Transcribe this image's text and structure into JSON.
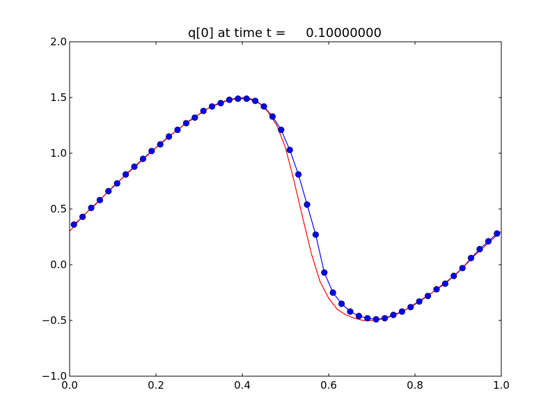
{
  "chart_data": {
    "type": "line",
    "title": "q[0] at time t =     0.10000000",
    "xlabel": "",
    "ylabel": "",
    "xlim": [
      0.0,
      1.0
    ],
    "ylim": [
      -1.0,
      2.0
    ],
    "grid": false,
    "x_ticks": [
      {
        "value": 0.0,
        "label": "0.0"
      },
      {
        "value": 0.2,
        "label": "0.2"
      },
      {
        "value": 0.4,
        "label": "0.4"
      },
      {
        "value": 0.6,
        "label": "0.6"
      },
      {
        "value": 0.8,
        "label": "0.8"
      },
      {
        "value": 1.0,
        "label": "1.0"
      }
    ],
    "y_ticks": [
      {
        "value": -1.0,
        "label": "−1.0"
      },
      {
        "value": -0.5,
        "label": "−0.5"
      },
      {
        "value": 0.0,
        "label": "0.0"
      },
      {
        "value": 0.5,
        "label": "0.5"
      },
      {
        "value": 1.0,
        "label": "1.0"
      },
      {
        "value": 1.5,
        "label": "1.5"
      },
      {
        "value": 2.0,
        "label": "2.0"
      }
    ],
    "series": [
      {
        "style": "line-with-markers",
        "color": "#0000ff",
        "marker_color": "#0000ff",
        "x": [
          0.01,
          0.03,
          0.05,
          0.07,
          0.09,
          0.11,
          0.13,
          0.15,
          0.17,
          0.19,
          0.21,
          0.23,
          0.25,
          0.27,
          0.29,
          0.31,
          0.33,
          0.35,
          0.37,
          0.39,
          0.41,
          0.43,
          0.45,
          0.47,
          0.49,
          0.51,
          0.53,
          0.55,
          0.57,
          0.59,
          0.61,
          0.63,
          0.65,
          0.67,
          0.69,
          0.71,
          0.73,
          0.75,
          0.77,
          0.79,
          0.81,
          0.83,
          0.85,
          0.87,
          0.89,
          0.91,
          0.93,
          0.95,
          0.97,
          0.99
        ],
        "y": [
          0.36,
          0.43,
          0.51,
          0.58,
          0.66,
          0.73,
          0.81,
          0.88,
          0.95,
          1.02,
          1.08,
          1.15,
          1.21,
          1.27,
          1.32,
          1.38,
          1.42,
          1.45,
          1.48,
          1.49,
          1.49,
          1.47,
          1.42,
          1.33,
          1.21,
          1.03,
          0.81,
          0.54,
          0.27,
          -0.07,
          -0.25,
          -0.35,
          -0.42,
          -0.46,
          -0.48,
          -0.49,
          -0.48,
          -0.45,
          -0.42,
          -0.38,
          -0.33,
          -0.28,
          -0.22,
          -0.17,
          -0.1,
          -0.03,
          0.06,
          0.14,
          0.21,
          0.28
        ]
      },
      {
        "style": "line",
        "color": "#ff0000",
        "x": [
          0.0,
          0.02,
          0.04,
          0.06,
          0.08,
          0.1,
          0.12,
          0.14,
          0.16,
          0.18,
          0.2,
          0.22,
          0.24,
          0.26,
          0.28,
          0.3,
          0.32,
          0.34,
          0.36,
          0.38,
          0.4,
          0.42,
          0.44,
          0.46,
          0.48,
          0.5,
          0.52,
          0.54,
          0.56,
          0.58,
          0.6,
          0.62,
          0.64,
          0.66,
          0.68,
          0.7,
          0.72,
          0.74,
          0.76,
          0.78,
          0.8,
          0.82,
          0.84,
          0.86,
          0.88,
          0.9,
          0.92,
          0.94,
          0.96,
          0.98,
          1.0
        ],
        "y": [
          0.3,
          0.39,
          0.47,
          0.54,
          0.62,
          0.7,
          0.77,
          0.84,
          0.91,
          0.98,
          1.05,
          1.12,
          1.18,
          1.24,
          1.3,
          1.35,
          1.4,
          1.44,
          1.47,
          1.49,
          1.5,
          1.49,
          1.45,
          1.37,
          1.25,
          1.05,
          0.75,
          0.42,
          0.1,
          -0.15,
          -0.3,
          -0.4,
          -0.45,
          -0.48,
          -0.5,
          -0.5,
          -0.49,
          -0.47,
          -0.44,
          -0.4,
          -0.35,
          -0.3,
          -0.25,
          -0.19,
          -0.13,
          -0.07,
          0.01,
          0.09,
          0.16,
          0.23,
          0.3
        ]
      }
    ]
  }
}
